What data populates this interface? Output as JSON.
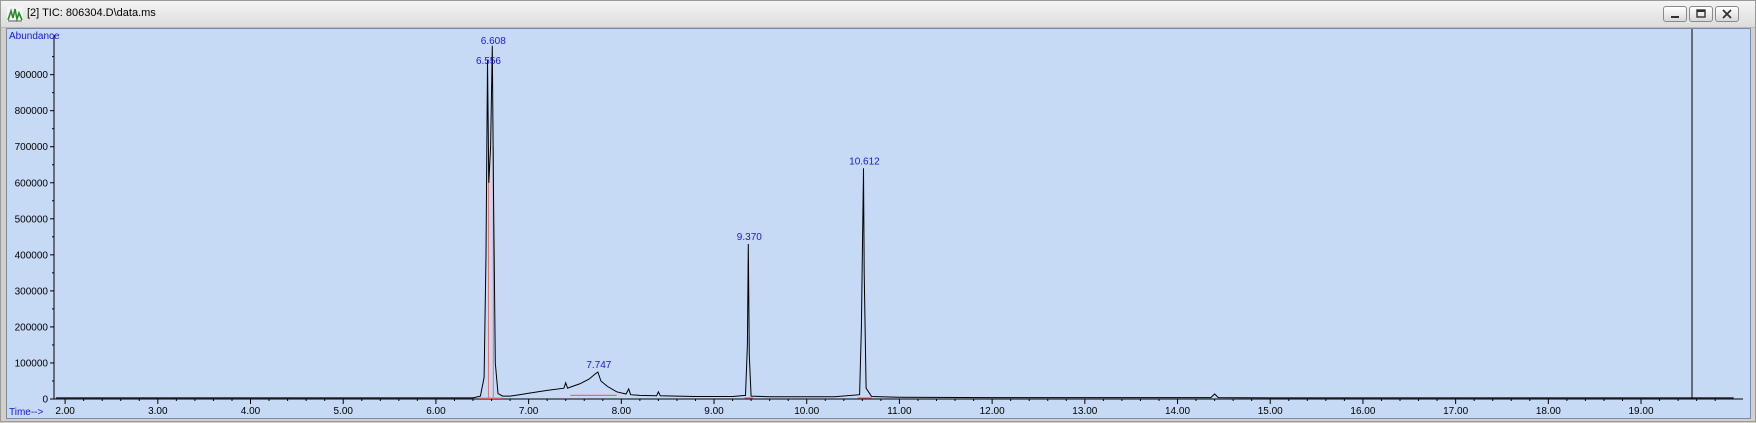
{
  "window": {
    "title": "[2] TIC: 806304.D\\data.ms",
    "buttons": [
      "minimize",
      "restore",
      "close"
    ]
  },
  "colors": {
    "plot_background": "#c6daf6",
    "trace": "#000000",
    "baseline": "#e07070",
    "peak_label": "#1a1ad0",
    "axis_label": "#1a1ad0"
  },
  "chart_data": {
    "type": "line",
    "title": "",
    "xlabel": "Time-->",
    "ylabel": "Abundance",
    "xlim": [
      1.88,
      20.1
    ],
    "ylim": [
      0,
      1010000
    ],
    "x_ticks": [
      "2.00",
      "3.00",
      "4.00",
      "5.00",
      "6.00",
      "7.00",
      "8.00",
      "9.00",
      "10.00",
      "11.00",
      "12.00",
      "13.00",
      "14.00",
      "15.00",
      "16.00",
      "17.00",
      "18.00",
      "19.00"
    ],
    "y_ticks": [
      "0",
      "100000",
      "200000",
      "300000",
      "400000",
      "500000",
      "600000",
      "700000",
      "800000",
      "900000"
    ],
    "grid": false,
    "cursor_time": 19.55,
    "peaks": [
      {
        "rt": 6.556,
        "label": "6.556",
        "height": 940000
      },
      {
        "rt": 6.608,
        "label": "6.608",
        "height": 980000
      },
      {
        "rt": 7.747,
        "label": "7.747",
        "height": 75000
      },
      {
        "rt": 9.37,
        "label": "9.370",
        "height": 430000
      },
      {
        "rt": 10.612,
        "label": "10.612",
        "height": 640000
      }
    ],
    "series": [
      {
        "x": [
          1.9,
          2.4,
          3.0,
          4.0,
          5.0,
          6.0,
          6.4,
          6.48,
          6.52,
          6.54,
          6.556,
          6.57,
          6.59,
          6.608,
          6.62,
          6.64,
          6.67,
          6.72,
          6.8,
          6.9,
          7.0,
          7.2,
          7.38,
          7.4,
          7.42,
          7.45,
          7.55,
          7.65,
          7.72,
          7.747,
          7.78,
          7.85,
          7.95,
          8.05,
          8.08,
          8.1,
          8.2,
          8.38,
          8.4,
          8.42,
          8.6,
          8.8,
          9.0,
          9.2,
          9.34,
          9.36,
          9.37,
          9.38,
          9.4,
          9.6,
          9.8,
          10.0,
          10.3,
          10.57,
          10.59,
          10.612,
          10.62,
          10.64,
          10.7,
          11.0,
          12.0,
          13.0,
          14.0,
          14.36,
          14.4,
          14.44,
          15.0,
          16.0,
          17.0,
          18.0,
          19.0,
          20.0
        ],
        "y": [
          3000,
          3000,
          3000,
          3000,
          3000,
          3000,
          3000,
          8000,
          60000,
          400000,
          940000,
          600000,
          700000,
          980000,
          600000,
          100000,
          15000,
          8000,
          8000,
          12000,
          16000,
          24000,
          30000,
          45000,
          30000,
          33000,
          42000,
          55000,
          70000,
          75000,
          50000,
          35000,
          20000,
          14000,
          28000,
          12000,
          10000,
          9000,
          20000,
          9000,
          8000,
          7000,
          7000,
          7000,
          10000,
          150000,
          430000,
          120000,
          8000,
          6000,
          6000,
          6000,
          6000,
          12000,
          200000,
          640000,
          350000,
          30000,
          7000,
          5000,
          4000,
          4000,
          4000,
          4000,
          14000,
          4000,
          3000,
          3000,
          3000,
          3000,
          3000,
          3000
        ]
      }
    ]
  }
}
